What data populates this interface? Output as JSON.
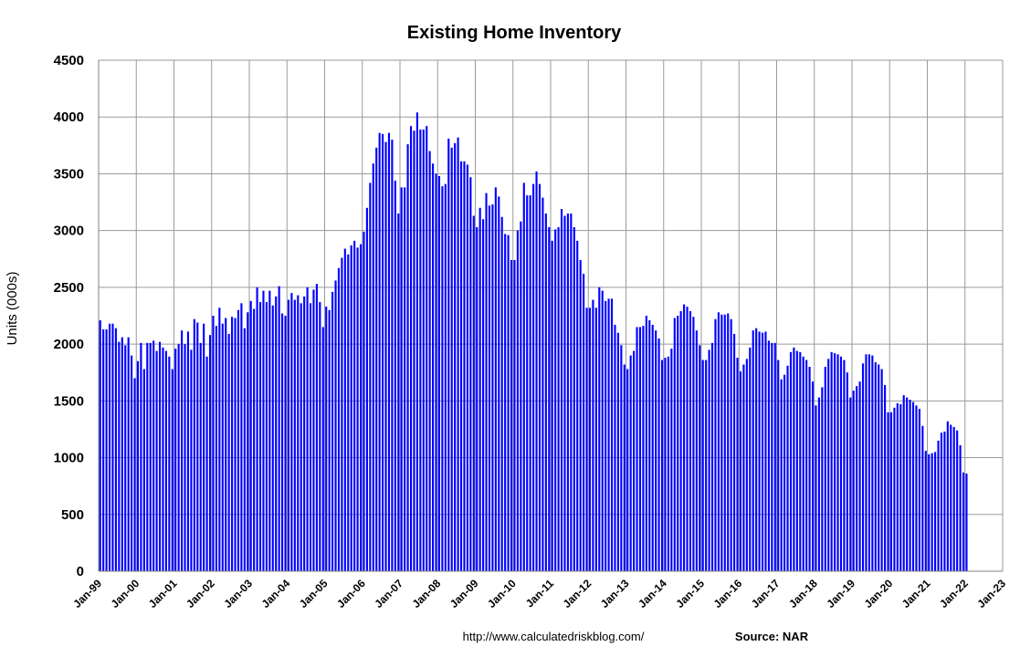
{
  "chart_data": {
    "type": "bar",
    "title": "Existing Home Inventory",
    "ylabel": "Units (000s)",
    "xlabel": "",
    "ylim": [
      0,
      4500
    ],
    "yticks": [
      0,
      500,
      1000,
      1500,
      2000,
      2500,
      3000,
      3500,
      4000,
      4500
    ],
    "xticks": [
      "Jan-99",
      "Jan-00",
      "Jan-01",
      "Jan-02",
      "Jan-03",
      "Jan-04",
      "Jan-05",
      "Jan-06",
      "Jan-07",
      "Jan-08",
      "Jan-09",
      "Jan-10",
      "Jan-11",
      "Jan-12",
      "Jan-13",
      "Jan-14",
      "Jan-15",
      "Jan-16",
      "Jan-17",
      "Jan-18",
      "Jan-19",
      "Jan-20",
      "Jan-21",
      "Jan-22",
      "Jan-23"
    ],
    "grid": true,
    "legend": "none",
    "bar_color": "#0000ff",
    "start": "Jan-99",
    "series": [
      {
        "values": [
          2210,
          2130,
          2130,
          2180,
          2180,
          2140,
          2020,
          2060,
          1990,
          2060,
          1900,
          1700,
          1850,
          2010,
          1780,
          2010,
          2010,
          2030,
          1940,
          2020,
          1970,
          1940,
          1890,
          1780,
          1960,
          2000,
          2120,
          2000,
          2110,
          1950,
          2220,
          2190,
          2010,
          2180,
          1890,
          2080,
          2250,
          2160,
          2320,
          2180,
          2230,
          2090,
          2240,
          2230,
          2300,
          2360,
          2140,
          2280,
          2380,
          2310,
          2500,
          2370,
          2470,
          2370,
          2470,
          2340,
          2420,
          2510,
          2270,
          2250,
          2390,
          2450,
          2390,
          2430,
          2360,
          2420,
          2500,
          2360,
          2480,
          2530,
          2370,
          2150,
          2330,
          2300,
          2460,
          2560,
          2670,
          2760,
          2840,
          2790,
          2870,
          2910,
          2850,
          2880,
          2990,
          3200,
          3420,
          3590,
          3730,
          3860,
          3850,
          3780,
          3860,
          3800,
          3440,
          3150,
          3380,
          3380,
          3760,
          3920,
          3880,
          4040,
          3890,
          3890,
          3920,
          3700,
          3590,
          3500,
          3480,
          3390,
          3410,
          3810,
          3730,
          3770,
          3820,
          3610,
          3610,
          3580,
          3470,
          3130,
          3030,
          3200,
          3100,
          3330,
          3220,
          3230,
          3380,
          3300,
          3120,
          2970,
          2960,
          2740,
          2740,
          3000,
          3080,
          3420,
          3310,
          3310,
          3410,
          3520,
          3410,
          3290,
          3150,
          3030,
          2910,
          3010,
          3030,
          3190,
          3130,
          3150,
          3150,
          3030,
          2910,
          2740,
          2620,
          2320,
          2320,
          2390,
          2320,
          2500,
          2470,
          2380,
          2400,
          2400,
          2170,
          2100,
          1990,
          1820,
          1780,
          1900,
          1940,
          2150,
          2150,
          2160,
          2250,
          2210,
          2170,
          2120,
          2050,
          1860,
          1880,
          1890,
          1960,
          2230,
          2250,
          2290,
          2350,
          2330,
          2290,
          2240,
          2120,
          1990,
          1860,
          1860,
          1950,
          2010,
          2220,
          2280,
          2260,
          2260,
          2270,
          2220,
          2090,
          1880,
          1760,
          1820,
          1870,
          1970,
          2120,
          2140,
          2110,
          2100,
          2110,
          2030,
          2010,
          2010,
          1860,
          1690,
          1730,
          1810,
          1930,
          1970,
          1940,
          1930,
          1890,
          1860,
          1800,
          1670,
          1460,
          1530,
          1620,
          1800,
          1870,
          1930,
          1920,
          1910,
          1890,
          1860,
          1750,
          1530,
          1590,
          1630,
          1670,
          1830,
          1910,
          1910,
          1900,
          1840,
          1820,
          1780,
          1640,
          1400,
          1400,
          1440,
          1480,
          1470,
          1550,
          1530,
          1510,
          1490,
          1460,
          1430,
          1280,
          1060,
          1030,
          1040,
          1050,
          1150,
          1220,
          1230,
          1320,
          1290,
          1270,
          1240,
          1110,
          870,
          860
        ]
      }
    ],
    "footer": {
      "url": "http://www.calculatedriskblog.com/",
      "source": "Source: NAR"
    }
  }
}
